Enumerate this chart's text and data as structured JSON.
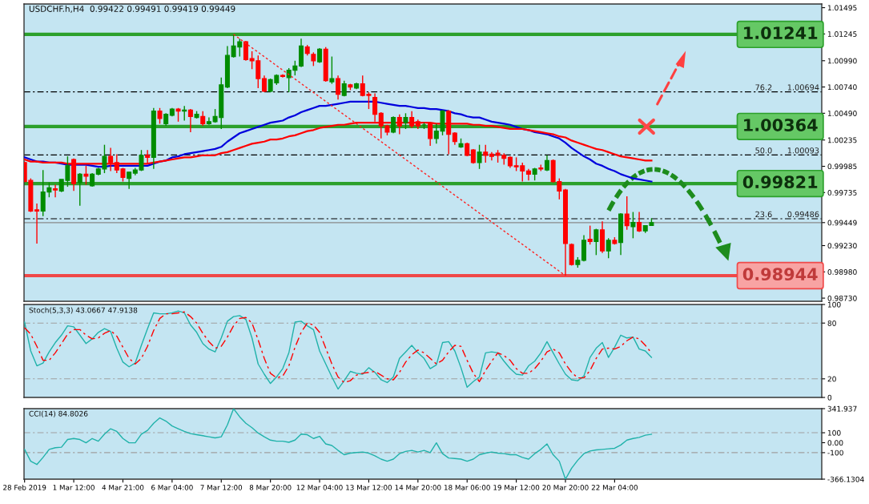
{
  "chart_data": [
    {
      "type": "candlestick",
      "title": "USDCHF.h,H4  0.99422 0.99491 0.99419 0.99449",
      "tick_labels": "y",
      "categories": [
        null,
        null,
        null,
        null,
        null,
        null,
        null,
        null,
        null,
        null,
        null,
        null,
        null,
        null,
        null,
        null,
        null,
        null,
        null,
        null,
        null,
        null,
        null,
        null,
        null,
        null,
        null,
        null,
        null,
        null,
        null,
        null,
        null,
        null,
        null,
        null,
        null,
        null,
        null,
        null,
        null,
        null,
        null,
        null,
        null,
        null,
        null,
        null,
        null,
        null,
        null,
        null,
        null,
        null,
        null,
        null,
        null,
        null,
        null,
        null,
        null,
        null,
        null,
        null,
        null,
        null,
        null,
        null,
        null,
        null,
        null,
        null,
        null,
        null,
        null,
        null,
        null,
        null,
        null,
        null,
        null,
        null,
        null,
        null,
        null,
        null,
        null,
        null,
        null,
        null,
        null,
        null,
        null,
        null,
        null,
        null,
        null,
        null,
        null,
        null,
        null,
        null,
        null
      ],
      "ohlc": [
        [
          1.0002,
          1.0003,
          0.9984,
          0.9984
        ],
        [
          0.9985,
          0.9987,
          0.9955,
          0.9956
        ],
        [
          0.9957,
          0.9963,
          0.9925,
          0.9956
        ],
        [
          0.9956,
          0.9995,
          0.9951,
          0.9974
        ],
        [
          0.9974,
          0.9983,
          0.9969,
          0.9978
        ],
        [
          0.9977,
          0.9981,
          0.9969,
          0.9976
        ],
        [
          0.9975,
          0.9986,
          0.9974,
          0.9986
        ],
        [
          0.9985,
          1.0008,
          0.9979,
          0.9999
        ],
        [
          1.0005,
          1.0006,
          0.9975,
          0.9982
        ],
        [
          0.9983,
          0.9992,
          0.9961,
          0.9991
        ],
        [
          0.9991,
          0.9999,
          0.9981,
          0.9989
        ],
        [
          0.998,
          0.9992,
          0.9979,
          0.9991
        ],
        [
          0.9991,
          0.9997,
          0.999,
          0.9996
        ],
        [
          0.9996,
          1.0019,
          0.9992,
          1.0008
        ],
        [
          1.0008,
          1.0016,
          0.9994,
          1.0002
        ],
        [
          1.0002,
          1.001,
          0.9992,
          0.9995
        ],
        [
          0.9996,
          0.9997,
          0.9984,
          0.9988
        ],
        [
          0.9987,
          0.9993,
          0.9977,
          0.9993
        ],
        [
          0.9992,
          0.9997,
          0.999,
          0.9995
        ],
        [
          0.9995,
          1.0014,
          0.9994,
          1.0009
        ],
        [
          1.0009,
          1.0014,
          1.0001,
          1.0007
        ],
        [
          1.0007,
          1.0054,
          0.9996,
          1.0051
        ],
        [
          1.0051,
          1.0054,
          1.0039,
          1.0044
        ],
        [
          1.0039,
          1.0049,
          1.0037,
          1.0048
        ],
        [
          1.0047,
          1.0054,
          1.0046,
          1.0053
        ],
        [
          1.0053,
          1.0054,
          1.0041,
          1.0051
        ],
        [
          1.0051,
          1.0056,
          1.0042,
          1.0052
        ],
        [
          1.0052,
          1.0053,
          1.0031,
          1.0046
        ],
        [
          1.0045,
          1.0051,
          1.0044,
          1.0048
        ],
        [
          1.0046,
          1.0051,
          1.0037,
          1.0039
        ],
        [
          1.0039,
          1.0045,
          1.0038,
          1.0041
        ],
        [
          1.0041,
          1.0053,
          1.004,
          1.0046
        ],
        [
          1.0045,
          1.0083,
          1.0034,
          1.0076
        ],
        [
          1.0074,
          1.0113,
          1.0073,
          1.0104
        ],
        [
          1.0103,
          1.0124,
          1.0102,
          1.0113
        ],
        [
          1.0112,
          1.012,
          1.0103,
          1.0117
        ],
        [
          1.0117,
          1.0118,
          1.0099,
          1.01
        ],
        [
          1.0101,
          1.0108,
          1.0091,
          1.0099
        ],
        [
          1.0099,
          1.0104,
          1.0073,
          1.0082
        ],
        [
          1.0082,
          1.0085,
          1.0069,
          1.007
        ],
        [
          1.007,
          1.0082,
          1.0069,
          1.0081
        ],
        [
          1.0078,
          1.0086,
          1.0076,
          1.0085
        ],
        [
          1.0085,
          1.0086,
          1.0083,
          1.0084
        ],
        [
          1.0083,
          1.0092,
          1.0069,
          1.009
        ],
        [
          1.009,
          1.0099,
          1.0085,
          1.0094
        ],
        [
          1.0094,
          1.012,
          1.0093,
          1.0113
        ],
        [
          1.0112,
          1.0114,
          1.0104,
          1.0106
        ],
        [
          1.0105,
          1.0107,
          1.0094,
          1.0099
        ],
        [
          1.0098,
          1.0111,
          1.0097,
          1.011
        ],
        [
          1.011,
          1.0112,
          1.0079,
          1.008
        ],
        [
          1.0079,
          1.0103,
          1.0077,
          1.0082
        ],
        [
          1.0082,
          1.0085,
          1.0062,
          1.0067
        ],
        [
          1.0066,
          1.008,
          1.0065,
          1.0077
        ],
        [
          1.0076,
          1.0077,
          1.0071,
          1.0074
        ],
        [
          1.0073,
          1.0078,
          1.0072,
          1.0077
        ],
        [
          1.0077,
          1.0085,
          1.0065,
          1.0066
        ],
        [
          1.0067,
          1.0069,
          1.0053,
          1.0066
        ],
        [
          1.0064,
          1.0068,
          1.0041,
          1.0048
        ],
        [
          1.0049,
          1.005,
          1.0025,
          1.0037
        ],
        [
          1.0037,
          1.0038,
          1.0028,
          1.0031
        ],
        [
          1.0031,
          1.0046,
          1.003,
          1.0045
        ],
        [
          1.0045,
          1.0048,
          1.0029,
          1.0037
        ],
        [
          1.004,
          1.0049,
          1.0034,
          1.0045
        ],
        [
          1.0045,
          1.0051,
          1.0035,
          1.0037
        ],
        [
          1.0041,
          1.0043,
          1.0034,
          1.0037
        ],
        [
          1.0038,
          1.004,
          1.0034,
          1.0038
        ],
        [
          1.0039,
          1.004,
          1.0018,
          1.0025
        ],
        [
          1.0025,
          1.0039,
          1.002,
          1.0032
        ],
        [
          1.0032,
          1.0052,
          1.0028,
          1.0051
        ],
        [
          1.0051,
          1.0052,
          1.001,
          1.0029
        ],
        [
          1.003,
          1.0031,
          1.0019,
          1.0022
        ],
        [
          1.0017,
          1.0025,
          1.0016,
          1.002
        ],
        [
          1.002,
          1.0021,
          1.0008,
          1.0009
        ],
        [
          1.0014,
          1.0015,
          1.0001,
          1.0002
        ],
        [
          1.0002,
          1.0019,
          0.9996,
          1.0012
        ],
        [
          1.0012,
          1.0019,
          1.0002,
          1.0009
        ],
        [
          1.001,
          1.0012,
          1.0004,
          1.0008
        ],
        [
          1.0011,
          1.0014,
          1.0002,
          1.0009
        ],
        [
          1.0009,
          1.0011,
          1.0,
          1.0006
        ],
        [
          1.0007,
          1.0008,
          0.9997,
          0.9999
        ],
        [
          0.9999,
          1.0007,
          0.9994,
          0.9998
        ],
        [
          0.9999,
          1.0002,
          0.9984,
          0.9994
        ],
        [
          0.9994,
          0.9996,
          0.9985,
          0.9991
        ],
        [
          0.9991,
          0.9997,
          0.9985,
          0.9996
        ],
        [
          0.9997,
          1.0,
          0.9994,
          0.9996
        ],
        [
          0.9995,
          1.0009,
          0.9994,
          1.0004
        ],
        [
          1.0004,
          1.0005,
          0.9983,
          0.9984
        ],
        [
          0.9984,
          0.9987,
          0.9967,
          0.9975
        ],
        [
          0.9976,
          0.9977,
          0.98944,
          0.9925
        ],
        [
          0.9924,
          0.9925,
          0.9904,
          0.9905
        ],
        [
          0.9905,
          0.9912,
          0.9902,
          0.9909
        ],
        [
          0.9909,
          0.9933,
          0.9908,
          0.9928
        ],
        [
          0.9929,
          0.9942,
          0.9924,
          0.9927
        ],
        [
          0.9927,
          0.9939,
          0.9914,
          0.9938
        ],
        [
          0.9938,
          0.9946,
          0.9916,
          0.9918
        ],
        [
          0.9918,
          0.993,
          0.9911,
          0.9928
        ],
        [
          0.9928,
          0.9931,
          0.9924,
          0.9925
        ],
        [
          0.9926,
          0.9954,
          0.9914,
          0.9953
        ],
        [
          0.9953,
          0.997,
          0.9938,
          0.9942
        ],
        [
          0.9941,
          0.9955,
          0.993,
          0.9945
        ],
        [
          0.9945,
          0.9955,
          0.9936,
          0.9937
        ],
        [
          0.9937,
          0.9942,
          0.9935,
          0.9942
        ],
        [
          0.99422,
          0.99491,
          0.99419,
          0.99449
        ]
      ],
      "colors": [
        "#ff0000",
        "#ff0000",
        "#ff0000",
        "#008c00",
        "#008c00",
        "#ff0000",
        "#008c00",
        "#008c00",
        "#ff0000",
        "#008c00",
        "#ff0000",
        "#008c00",
        "#008c00",
        "#008c00",
        "#ff0000",
        "#ff0000",
        "#ff0000",
        "#008c00",
        "#008c00",
        "#008c00",
        "#ff0000",
        "#008c00",
        "#ff0000",
        "#008c00",
        "#008c00",
        "#ff0000",
        "#008c00",
        "#ff0000",
        "#008c00",
        "#ff0000",
        "#008c00",
        "#008c00",
        "#008c00",
        "#008c00",
        "#008c00",
        "#008c00",
        "#ff0000",
        "#ff0000",
        "#ff0000",
        "#ff0000",
        "#008c00",
        "#008c00",
        "#ff0000",
        "#008c00",
        "#008c00",
        "#008c00",
        "#ff0000",
        "#ff0000",
        "#008c00",
        "#ff0000",
        "#008c00",
        "#ff0000",
        "#008c00",
        "#ff0000",
        "#008c00",
        "#ff0000",
        "#ff0000",
        "#ff0000",
        "#ff0000",
        "#ff0000",
        "#008c00",
        "#ff0000",
        "#008c00",
        "#ff0000",
        "#ff0000",
        "#008c00",
        "#ff0000",
        "#008c00",
        "#008c00",
        "#ff0000",
        "#ff0000",
        "#008c00",
        "#ff0000",
        "#ff0000",
        "#008c00",
        "#ff0000",
        "#ff0000",
        "#ff0000",
        "#ff0000",
        "#ff0000",
        "#ff0000",
        "#ff0000",
        "#ff0000",
        "#008c00",
        "#ff0000",
        "#008c00",
        "#ff0000",
        "#ff0000",
        "#ff0000",
        "#ff0000",
        "#008c00",
        "#008c00",
        "#ff0000",
        "#008c00",
        "#ff0000",
        "#008c00",
        "#ff0000",
        "#008c00",
        "#ff0000",
        "#008c00",
        "#ff0000",
        "#008c00",
        "#008c00"
      ],
      "series": [
        {
          "type": "line",
          "color": "#0000dd",
          "line_style": "solid",
          "values": [
            1.0007,
            1.0005,
            1.0003,
            1.0003,
            1.0002,
            1.0002,
            1.0001,
            1.0,
            1.0,
            1.0,
            1.0,
            0.9999,
            0.9998,
            0.9998,
            0.9999,
            0.9999,
            0.9999,
            0.9999,
            0.9999,
            0.9999,
            0.9999,
            1.0001,
            1.0003,
            1.0004,
            1.0007,
            1.0008,
            1.001,
            1.0011,
            1.0012,
            1.0013,
            1.0014,
            1.0015,
            1.0017,
            1.0022,
            1.0026,
            1.003,
            1.0032,
            1.0034,
            1.0036,
            1.0038,
            1.004,
            1.0041,
            1.0042,
            1.0045,
            1.0047,
            1.005,
            1.0052,
            1.0054,
            1.0056,
            1.0056,
            1.0057,
            1.0058,
            1.0059,
            1.006,
            1.006,
            1.006,
            1.006,
            1.006,
            1.0059,
            1.0058,
            1.0057,
            1.0056,
            1.0056,
            1.0055,
            1.0054,
            1.0054,
            1.0053,
            1.0053,
            1.0052,
            1.0051,
            1.0049,
            1.0048,
            1.0046,
            1.0045,
            1.0045,
            1.0043,
            1.0041,
            1.004,
            1.0039,
            1.0038,
            1.0036,
            1.0034,
            1.0033,
            1.0031,
            1.003,
            1.0029,
            1.0027,
            1.0025,
            1.0021,
            1.0016,
            1.0012,
            1.0008,
            1.0005,
            1.0001,
            0.9999,
            0.9996,
            0.9994,
            0.9991,
            0.9989,
            0.9987,
            0.9986,
            0.9985,
            0.9984
          ]
        },
        {
          "type": "line",
          "color": "#ff0000",
          "line_style": "solid",
          "values": [
            1.0005,
            1.0003,
            1.0003,
            1.0002,
            1.0002,
            1.0002,
            1.0002,
            1.0001,
            1.0001,
            1.0001,
            1.0001,
            1.0001,
            1.0001,
            1.0001,
            1.0001,
            1.0001,
            1.0001,
            1.0001,
            1.0001,
            1.0001,
            1.0001,
            1.0002,
            1.0003,
            1.0004,
            1.0005,
            1.0006,
            1.0007,
            1.0007,
            1.0008,
            1.0009,
            1.0009,
            1.0009,
            1.0011,
            1.0012,
            1.0014,
            1.0016,
            1.0018,
            1.002,
            1.0021,
            1.0022,
            1.0024,
            1.0024,
            1.0025,
            1.0027,
            1.0028,
            1.003,
            1.0032,
            1.0033,
            1.0035,
            1.0036,
            1.0037,
            1.0038,
            1.0038,
            1.0039,
            1.004,
            1.004,
            1.004,
            1.004,
            1.004,
            1.004,
            1.004,
            1.004,
            1.004,
            1.004,
            1.004,
            1.004,
            1.004,
            1.0039,
            1.0039,
            1.0039,
            1.0039,
            1.0039,
            1.0039,
            1.0038,
            1.0038,
            1.0037,
            1.0037,
            1.0036,
            1.0035,
            1.0034,
            1.0034,
            1.0034,
            1.0033,
            1.0032,
            1.0031,
            1.003,
            1.0029,
            1.0027,
            1.0026,
            1.0023,
            1.0021,
            1.0019,
            1.0017,
            1.0015,
            1.0014,
            1.0012,
            1.001,
            1.0008,
            1.0007,
            1.0006,
            1.0005,
            1.0004,
            1.0004
          ]
        },
        {
          "type": "line",
          "color": "#ff2020",
          "line_style": "dotted",
          "values": [
            null,
            null,
            null,
            null,
            null,
            null,
            null,
            null,
            null,
            null,
            null,
            null,
            null,
            null,
            null,
            null,
            null,
            null,
            null,
            null,
            null,
            null,
            null,
            null,
            null,
            null,
            null,
            null,
            null,
            null,
            null,
            null,
            null,
            null,
            1.01241,
            null,
            null,
            null,
            null,
            null,
            null,
            null,
            null,
            null,
            null,
            null,
            null,
            null,
            null,
            null,
            null,
            null,
            null,
            null,
            null,
            null,
            null,
            null,
            null,
            null,
            null,
            null,
            null,
            null,
            null,
            null,
            null,
            null,
            null,
            null,
            null,
            null,
            null,
            null,
            null,
            null,
            null,
            null,
            null,
            null,
            null,
            null,
            null,
            null,
            null,
            null,
            null,
            null,
            0.98944,
            null,
            null,
            null,
            null,
            null,
            null,
            null,
            null,
            null,
            null,
            null,
            null,
            null,
            null
          ]
        }
      ],
      "ylim": [
        0.987,
        1.0153
      ],
      "yticks": [
        1.01495,
        1.01245,
        {
          "value": 1.0099,
          "label": "1.00990"
        },
        {
          "value": 1.0074,
          "label": "1.00740"
        },
        {
          "value": 1.0049,
          "label": "1.00490"
        },
        1.00235,
        0.99985,
        0.99735,
        0.99449,
        {
          "value": 0.9923,
          "label": "0.99230"
        },
        {
          "value": 0.9898,
          "label": "0.98980"
        },
        {
          "value": 0.9873,
          "label": "0.98730"
        }
      ],
      "ref_lines": [
        {
          "axis": "y",
          "value": 1.01241,
          "label": "1.01241",
          "color": "#2ca02c",
          "line_style": "solid"
        },
        {
          "axis": "y",
          "value": 1.00364,
          "label": "1.00364",
          "color": "#2ca02c",
          "line_style": "solid"
        },
        {
          "axis": "y",
          "value": 0.99821,
          "label": "0.99821",
          "color": "#2ca02c",
          "line_style": "solid"
        },
        {
          "axis": "y",
          "value": 0.98944,
          "label": "0.98944",
          "color": "#f04848",
          "line_style": "solid"
        },
        {
          "axis": "y",
          "value": 1.00694,
          "label": "76.2      1.00694",
          "color": "#000000",
          "line_style": "dashed"
        },
        {
          "axis": "y",
          "value": 1.00093,
          "label": "50.0      1.00093",
          "color": "#000000",
          "line_style": "dashed"
        },
        {
          "axis": "y",
          "value": 0.99486,
          "label": "23.6      0.99486",
          "color": "#000000",
          "line_style": "dashed"
        },
        {
          "axis": "y",
          "value": 0.99449,
          "color": "#8a8a8a",
          "line_style": "solid"
        }
      ]
    },
    {
      "type": "line",
      "title": "Stoch(5,3,3) 43.0667 47.9138",
      "tick_labels": "y",
      "categories": [
        null,
        null,
        null,
        null,
        null,
        null,
        null,
        null,
        null,
        null,
        null,
        null,
        null,
        null,
        null,
        null,
        null,
        null,
        null,
        null,
        null,
        null,
        null,
        null,
        null,
        null,
        null,
        null,
        null,
        null,
        null,
        null,
        null,
        null,
        null,
        null,
        null,
        null,
        null,
        null,
        null,
        null,
        null,
        null,
        null,
        null,
        null,
        null,
        null,
        null,
        null,
        null,
        null,
        null,
        null,
        null,
        null,
        null,
        null,
        null,
        null,
        null,
        null,
        null,
        null,
        null,
        null,
        null,
        null,
        null,
        null,
        null,
        null,
        null,
        null,
        null,
        null,
        null,
        null,
        null,
        null,
        null,
        null,
        null,
        null,
        null,
        null,
        null,
        null,
        null,
        null,
        null,
        null,
        null,
        null,
        null,
        null,
        null,
        null,
        null,
        null,
        null,
        null
      ],
      "series": [
        {
          "color": "#20b2aa",
          "line_style": "solid",
          "values": [
            81,
            50,
            34,
            37,
            49,
            59,
            67,
            77,
            76,
            67,
            58,
            63,
            70,
            74,
            71,
            53,
            38,
            33,
            37,
            56,
            74,
            91,
            90,
            90,
            91,
            93,
            91,
            78,
            70,
            58,
            52,
            49,
            64,
            82,
            87,
            88,
            84,
            64,
            36,
            25,
            15,
            22,
            31,
            48,
            81,
            82,
            77,
            73,
            50,
            36,
            22,
            9,
            18,
            28,
            26,
            25,
            32,
            27,
            19,
            16,
            22,
            42,
            49,
            56,
            48,
            42,
            31,
            35,
            59,
            60,
            50,
            32,
            11,
            17,
            22,
            48,
            49,
            48,
            39,
            31,
            25,
            24,
            34,
            39,
            48,
            60,
            48,
            36,
            25,
            19,
            18,
            23,
            43,
            53,
            59,
            43,
            54,
            67,
            64,
            65,
            52,
            50,
            43.0667
          ]
        },
        {
          "color": "#ff0000",
          "line_style": "dashed",
          "values": [
            75,
            68,
            55,
            40,
            40,
            48,
            58,
            68,
            73,
            73,
            67,
            63,
            64,
            69,
            72,
            66,
            54,
            42,
            36,
            42,
            55,
            72,
            85,
            90,
            90,
            91,
            92,
            87,
            80,
            69,
            60,
            53,
            55,
            65,
            77,
            85,
            86,
            80,
            62,
            42,
            26,
            21,
            23,
            34,
            54,
            70,
            80,
            78,
            70,
            53,
            36,
            22,
            16,
            18,
            24,
            26,
            27,
            28,
            24,
            20,
            19,
            27,
            38,
            46,
            51,
            48,
            42,
            36,
            40,
            49,
            56,
            55,
            40,
            26,
            17,
            29,
            39,
            48,
            45,
            40,
            31,
            26,
            26,
            31,
            39,
            49,
            52,
            48,
            36,
            27,
            21,
            21,
            29,
            42,
            52,
            53,
            52,
            55,
            61,
            65,
            63,
            56,
            47.9138
          ]
        }
      ],
      "ylim": [
        0,
        100
      ],
      "yticks": [
        0,
        20,
        80,
        100
      ],
      "ref_lines": [
        {
          "axis": "y",
          "value": 80,
          "color": "#a0a0a0",
          "line_style": "dashed"
        },
        {
          "axis": "y",
          "value": 20,
          "color": "#a0a0a0",
          "line_style": "dashed"
        }
      ]
    },
    {
      "type": "line",
      "title": "CCI(14) 84.8026",
      "categories": [
        "28 Feb 2019",
        null,
        null,
        null,
        null,
        null,
        null,
        null,
        "1 Mar 12:00",
        null,
        null,
        null,
        null,
        null,
        null,
        null,
        "4 Mar 21:00",
        null,
        null,
        null,
        null,
        null,
        null,
        null,
        "6 Mar 04:00",
        null,
        null,
        null,
        null,
        null,
        null,
        null,
        "7 Mar 12:00",
        null,
        null,
        null,
        null,
        null,
        null,
        null,
        "8 Mar 20:00",
        null,
        null,
        null,
        null,
        null,
        null,
        null,
        "12 Mar 04:00",
        null,
        null,
        null,
        null,
        null,
        null,
        null,
        "13 Mar 12:00",
        null,
        null,
        null,
        null,
        null,
        null,
        null,
        "14 Mar 20:00",
        null,
        null,
        null,
        null,
        null,
        null,
        null,
        "18 Mar 06:00",
        null,
        null,
        null,
        null,
        null,
        null,
        null,
        "19 Mar 12:00",
        null,
        null,
        null,
        null,
        null,
        null,
        null,
        "20 Mar 20:00",
        null,
        null,
        null,
        null,
        null,
        null,
        null,
        "22 Mar 04:00",
        null,
        null,
        null,
        null,
        null,
        null
      ],
      "series": [
        {
          "color": "#20b2aa",
          "line_style": "solid",
          "values": [
            -67,
            -186,
            -219,
            -148,
            -67,
            -50,
            -45,
            32,
            42,
            32,
            -1,
            42,
            15,
            86,
            140,
            113,
            42,
            -1,
            -1,
            86,
            124,
            195,
            249,
            217,
            168,
            140,
            113,
            91,
            80,
            70,
            59,
            48,
            59,
            179,
            341.937,
            260,
            195,
            151,
            97,
            59,
            26,
            15,
            15,
            4,
            26,
            86,
            80,
            42,
            64,
            -12,
            -28,
            -77,
            -121,
            -105,
            -99,
            -94,
            -105,
            -132,
            -165,
            -186,
            -165,
            -110,
            -88,
            -77,
            -94,
            -77,
            -99,
            -1,
            -110,
            -154,
            -159,
            -165,
            -186,
            -165,
            -121,
            -105,
            -94,
            -105,
            -110,
            -121,
            -121,
            -148,
            -165,
            -110,
            -67,
            -12,
            -121,
            -186,
            -366.1304,
            -257,
            -176,
            -110,
            -83,
            -72,
            -67,
            -61,
            -56,
            -23,
            26,
            42,
            53,
            75,
            84.8026
          ]
        }
      ],
      "ylim": [
        -366.1304,
        341.937
      ],
      "yticks": [
        341.937,
        100,
        {
          "value": 0,
          "label": "0.00"
        },
        -100,
        -366.1304
      ],
      "ref_lines": [
        {
          "axis": "y",
          "value": 100,
          "color": "#a0a0a0",
          "line_style": "dashed"
        },
        {
          "axis": "y",
          "value": -100,
          "color": "#a0a0a0",
          "line_style": "dashed"
        }
      ]
    }
  ]
}
